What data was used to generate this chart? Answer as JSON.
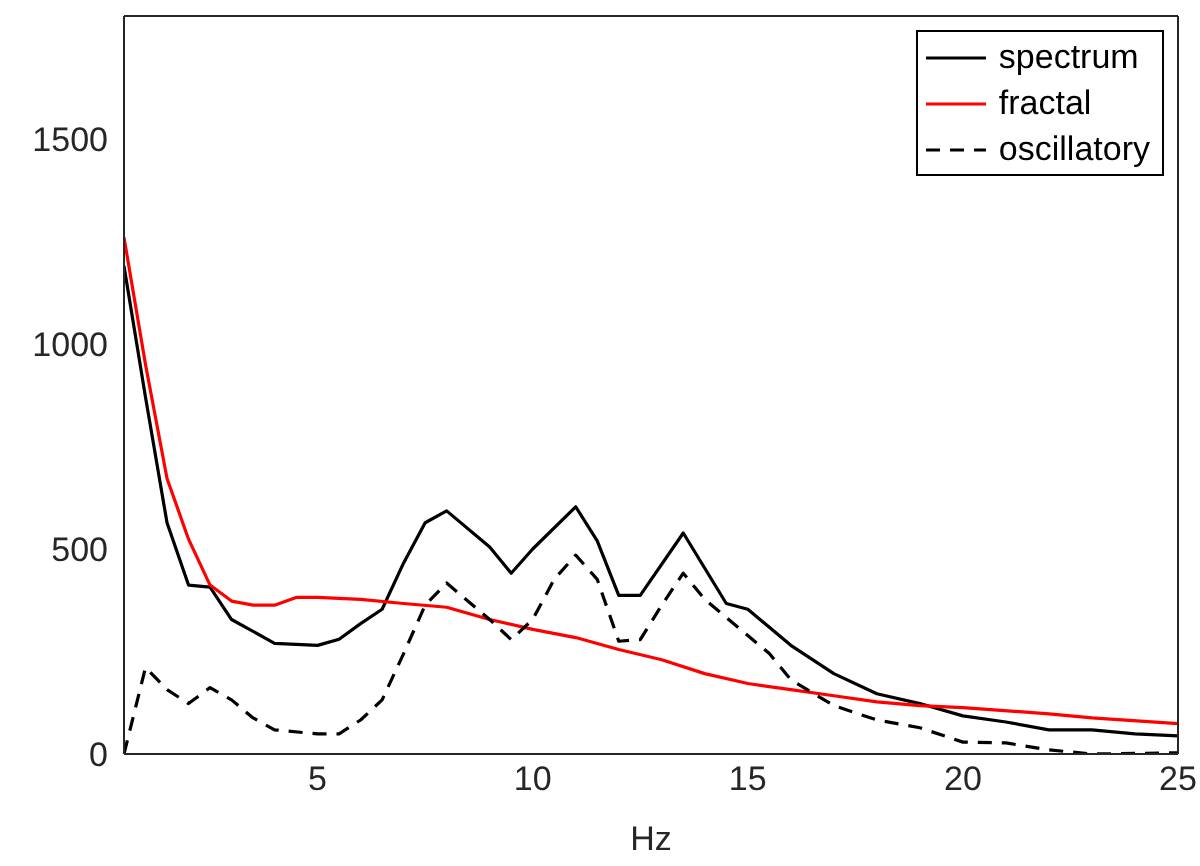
{
  "chart_data": {
    "type": "line",
    "xlabel": "Hz",
    "xlim": [
      0.5,
      25
    ],
    "ylim": [
      0,
      1800
    ],
    "xticks": [
      5,
      10,
      15,
      20,
      25
    ],
    "yticks": [
      0,
      500,
      1000,
      1500
    ],
    "legend": "top right",
    "marker": "none",
    "series": [
      {
        "name": "spectrum",
        "color": "#000000",
        "line_style": "solid",
        "x": [
          0.5,
          1,
          1.5,
          2,
          2.5,
          3,
          4,
          5,
          5.5,
          6,
          6.5,
          7,
          7.5,
          8,
          9,
          9.5,
          10,
          11,
          11.5,
          12,
          12.5,
          13.5,
          14.5,
          15,
          16,
          17,
          18,
          19,
          20,
          21,
          22,
          23,
          24,
          25
        ],
        "values": [
          1190,
          870,
          564,
          412,
          407,
          328,
          270,
          265,
          280,
          318,
          353,
          466,
          564,
          593,
          505,
          441,
          500,
          603,
          520,
          387,
          387,
          539,
          367,
          353,
          265,
          196,
          147,
          123,
          93,
          78,
          59,
          59,
          49,
          44
        ]
      },
      {
        "name": "fractal",
        "color": "#ff0000",
        "line_style": "solid",
        "x": [
          0.5,
          1,
          1.5,
          2,
          2.5,
          3,
          3.5,
          4,
          4.5,
          5,
          6,
          7,
          8,
          9,
          10,
          11,
          12,
          13,
          14,
          15,
          16,
          17,
          18,
          19,
          20,
          22,
          23,
          25
        ],
        "values": [
          1260,
          950,
          672,
          524,
          412,
          373,
          363,
          363,
          382,
          382,
          377,
          367,
          358,
          328,
          304,
          284,
          255,
          230,
          196,
          172,
          157,
          142,
          127,
          118,
          113,
          98,
          88,
          74
        ]
      },
      {
        "name": "oscillatory",
        "color": "#000000",
        "line_style": "dashed",
        "x": [
          0.5,
          1,
          1.5,
          2,
          2.5,
          3,
          3.5,
          4,
          5,
          5.5,
          6,
          6.5,
          7,
          7.5,
          8,
          9,
          9.5,
          10,
          10.5,
          11,
          11.5,
          12,
          12.5,
          13,
          13.5,
          14,
          15,
          15.5,
          16,
          17,
          18,
          19,
          20,
          21,
          22,
          23,
          25
        ],
        "values": [
          0,
          211,
          157,
          123,
          162,
          132,
          88,
          59,
          49,
          49,
          83,
          132,
          245,
          363,
          417,
          328,
          279,
          328,
          426,
          485,
          426,
          275,
          279,
          363,
          441,
          377,
          289,
          245,
          181,
          118,
          83,
          64,
          29,
          27,
          10,
          0,
          3
        ]
      }
    ]
  }
}
